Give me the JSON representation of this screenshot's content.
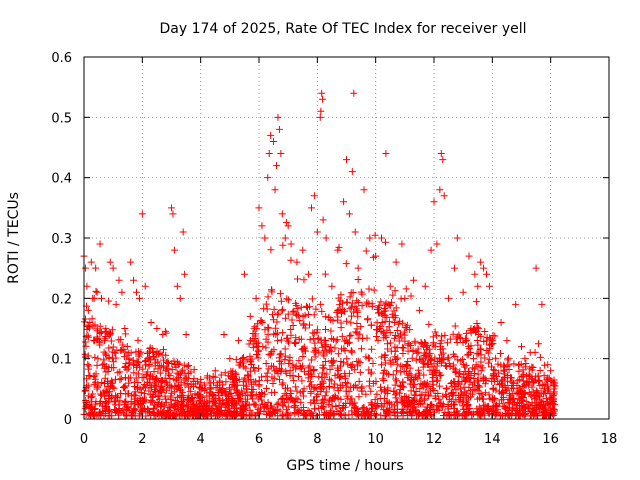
{
  "chart_data": {
    "type": "scatter",
    "title": "Day 174 of 2025, Rate Of TEC Index for receiver yell",
    "xlabel": "GPS time / hours",
    "ylabel": "ROTI / TECUs",
    "xlim": [
      0,
      18
    ],
    "ylim": [
      0,
      0.6
    ],
    "xticks": [
      0,
      2,
      4,
      6,
      8,
      10,
      12,
      14,
      16,
      18
    ],
    "yticks": [
      0,
      0.1,
      0.2,
      0.3,
      0.4,
      0.5,
      0.6
    ],
    "ytick_labels": [
      "0",
      "0.1",
      "0.2",
      "0.3",
      "0.4",
      "0.5",
      "0.6"
    ],
    "grid": true,
    "marker": "+",
    "color": "#ff0000",
    "series": [
      {
        "name": "ROTI",
        "points": [
          [
            0.0,
            0.27
          ],
          [
            0.05,
            0.25
          ],
          [
            0.1,
            0.22
          ],
          [
            0.15,
            0.18
          ],
          [
            0.2,
            0.16
          ],
          [
            0.25,
            0.26
          ],
          [
            0.3,
            0.2
          ],
          [
            0.35,
            0.2
          ],
          [
            0.4,
            0.25
          ],
          [
            0.45,
            0.21
          ],
          [
            0.55,
            0.29
          ],
          [
            0.6,
            0.2
          ],
          [
            0.7,
            0.13
          ],
          [
            0.9,
            0.26
          ],
          [
            1.0,
            0.25
          ],
          [
            1.1,
            0.19
          ],
          [
            1.2,
            0.23
          ],
          [
            1.3,
            0.21
          ],
          [
            1.4,
            0.15
          ],
          [
            1.6,
            0.26
          ],
          [
            1.7,
            0.23
          ],
          [
            1.8,
            0.21
          ],
          [
            1.9,
            0.2
          ],
          [
            2.0,
            0.34
          ],
          [
            2.1,
            0.22
          ],
          [
            2.3,
            0.16
          ],
          [
            2.5,
            0.15
          ],
          [
            2.7,
            0.14
          ],
          [
            3.0,
            0.35
          ],
          [
            3.05,
            0.34
          ],
          [
            3.1,
            0.28
          ],
          [
            3.2,
            0.22
          ],
          [
            3.3,
            0.2
          ],
          [
            3.4,
            0.31
          ],
          [
            3.45,
            0.24
          ],
          [
            3.5,
            0.14
          ],
          [
            4.0,
            0.06
          ],
          [
            4.5,
            0.08
          ],
          [
            4.8,
            0.14
          ],
          [
            5.0,
            0.1
          ],
          [
            5.3,
            0.13
          ],
          [
            5.5,
            0.24
          ],
          [
            5.7,
            0.17
          ],
          [
            5.9,
            0.2
          ],
          [
            6.0,
            0.35
          ],
          [
            6.1,
            0.32
          ],
          [
            6.2,
            0.3
          ],
          [
            6.3,
            0.4
          ],
          [
            6.35,
            0.44
          ],
          [
            6.4,
            0.47
          ],
          [
            6.5,
            0.46
          ],
          [
            6.55,
            0.38
          ],
          [
            6.6,
            0.42
          ],
          [
            6.65,
            0.5
          ],
          [
            6.7,
            0.48
          ],
          [
            6.75,
            0.44
          ],
          [
            6.8,
            0.34
          ],
          [
            6.9,
            0.3
          ],
          [
            7.0,
            0.32
          ],
          [
            7.1,
            0.29
          ],
          [
            7.3,
            0.26
          ],
          [
            7.5,
            0.28
          ],
          [
            7.7,
            0.24
          ],
          [
            7.8,
            0.35
          ],
          [
            7.9,
            0.37
          ],
          [
            8.0,
            0.31
          ],
          [
            8.1,
            0.5
          ],
          [
            8.12,
            0.51
          ],
          [
            8.15,
            0.54
          ],
          [
            8.18,
            0.53
          ],
          [
            8.2,
            0.33
          ],
          [
            8.3,
            0.3
          ],
          [
            8.5,
            0.22
          ],
          [
            8.7,
            0.28
          ],
          [
            8.9,
            0.36
          ],
          [
            9.0,
            0.43
          ],
          [
            9.1,
            0.34
          ],
          [
            9.2,
            0.41
          ],
          [
            9.25,
            0.54
          ],
          [
            9.3,
            0.31
          ],
          [
            9.4,
            0.25
          ],
          [
            9.6,
            0.38
          ],
          [
            9.8,
            0.3
          ],
          [
            10.0,
            0.27
          ],
          [
            10.2,
            0.3
          ],
          [
            10.35,
            0.44
          ],
          [
            10.5,
            0.22
          ],
          [
            10.7,
            0.26
          ],
          [
            10.9,
            0.29
          ],
          [
            11.0,
            0.2
          ],
          [
            11.3,
            0.23
          ],
          [
            11.5,
            0.18
          ],
          [
            11.7,
            0.22
          ],
          [
            11.9,
            0.28
          ],
          [
            12.0,
            0.36
          ],
          [
            12.1,
            0.29
          ],
          [
            12.2,
            0.38
          ],
          [
            12.25,
            0.44
          ],
          [
            12.3,
            0.43
          ],
          [
            12.35,
            0.37
          ],
          [
            12.5,
            0.2
          ],
          [
            12.7,
            0.25
          ],
          [
            12.8,
            0.3
          ],
          [
            13.0,
            0.21
          ],
          [
            13.2,
            0.27
          ],
          [
            13.4,
            0.24
          ],
          [
            13.5,
            0.22
          ],
          [
            13.6,
            0.26
          ],
          [
            13.7,
            0.25
          ],
          [
            13.8,
            0.24
          ],
          [
            13.9,
            0.22
          ],
          [
            14.0,
            0.13
          ],
          [
            14.3,
            0.16
          ],
          [
            14.5,
            0.13
          ],
          [
            14.8,
            0.19
          ],
          [
            15.0,
            0.12
          ],
          [
            15.3,
            0.11
          ],
          [
            15.5,
            0.25
          ],
          [
            15.7,
            0.19
          ],
          [
            15.9,
            0.09
          ],
          [
            16.0,
            0.08
          ],
          [
            16.1,
            0.06
          ]
        ]
      }
    ]
  }
}
